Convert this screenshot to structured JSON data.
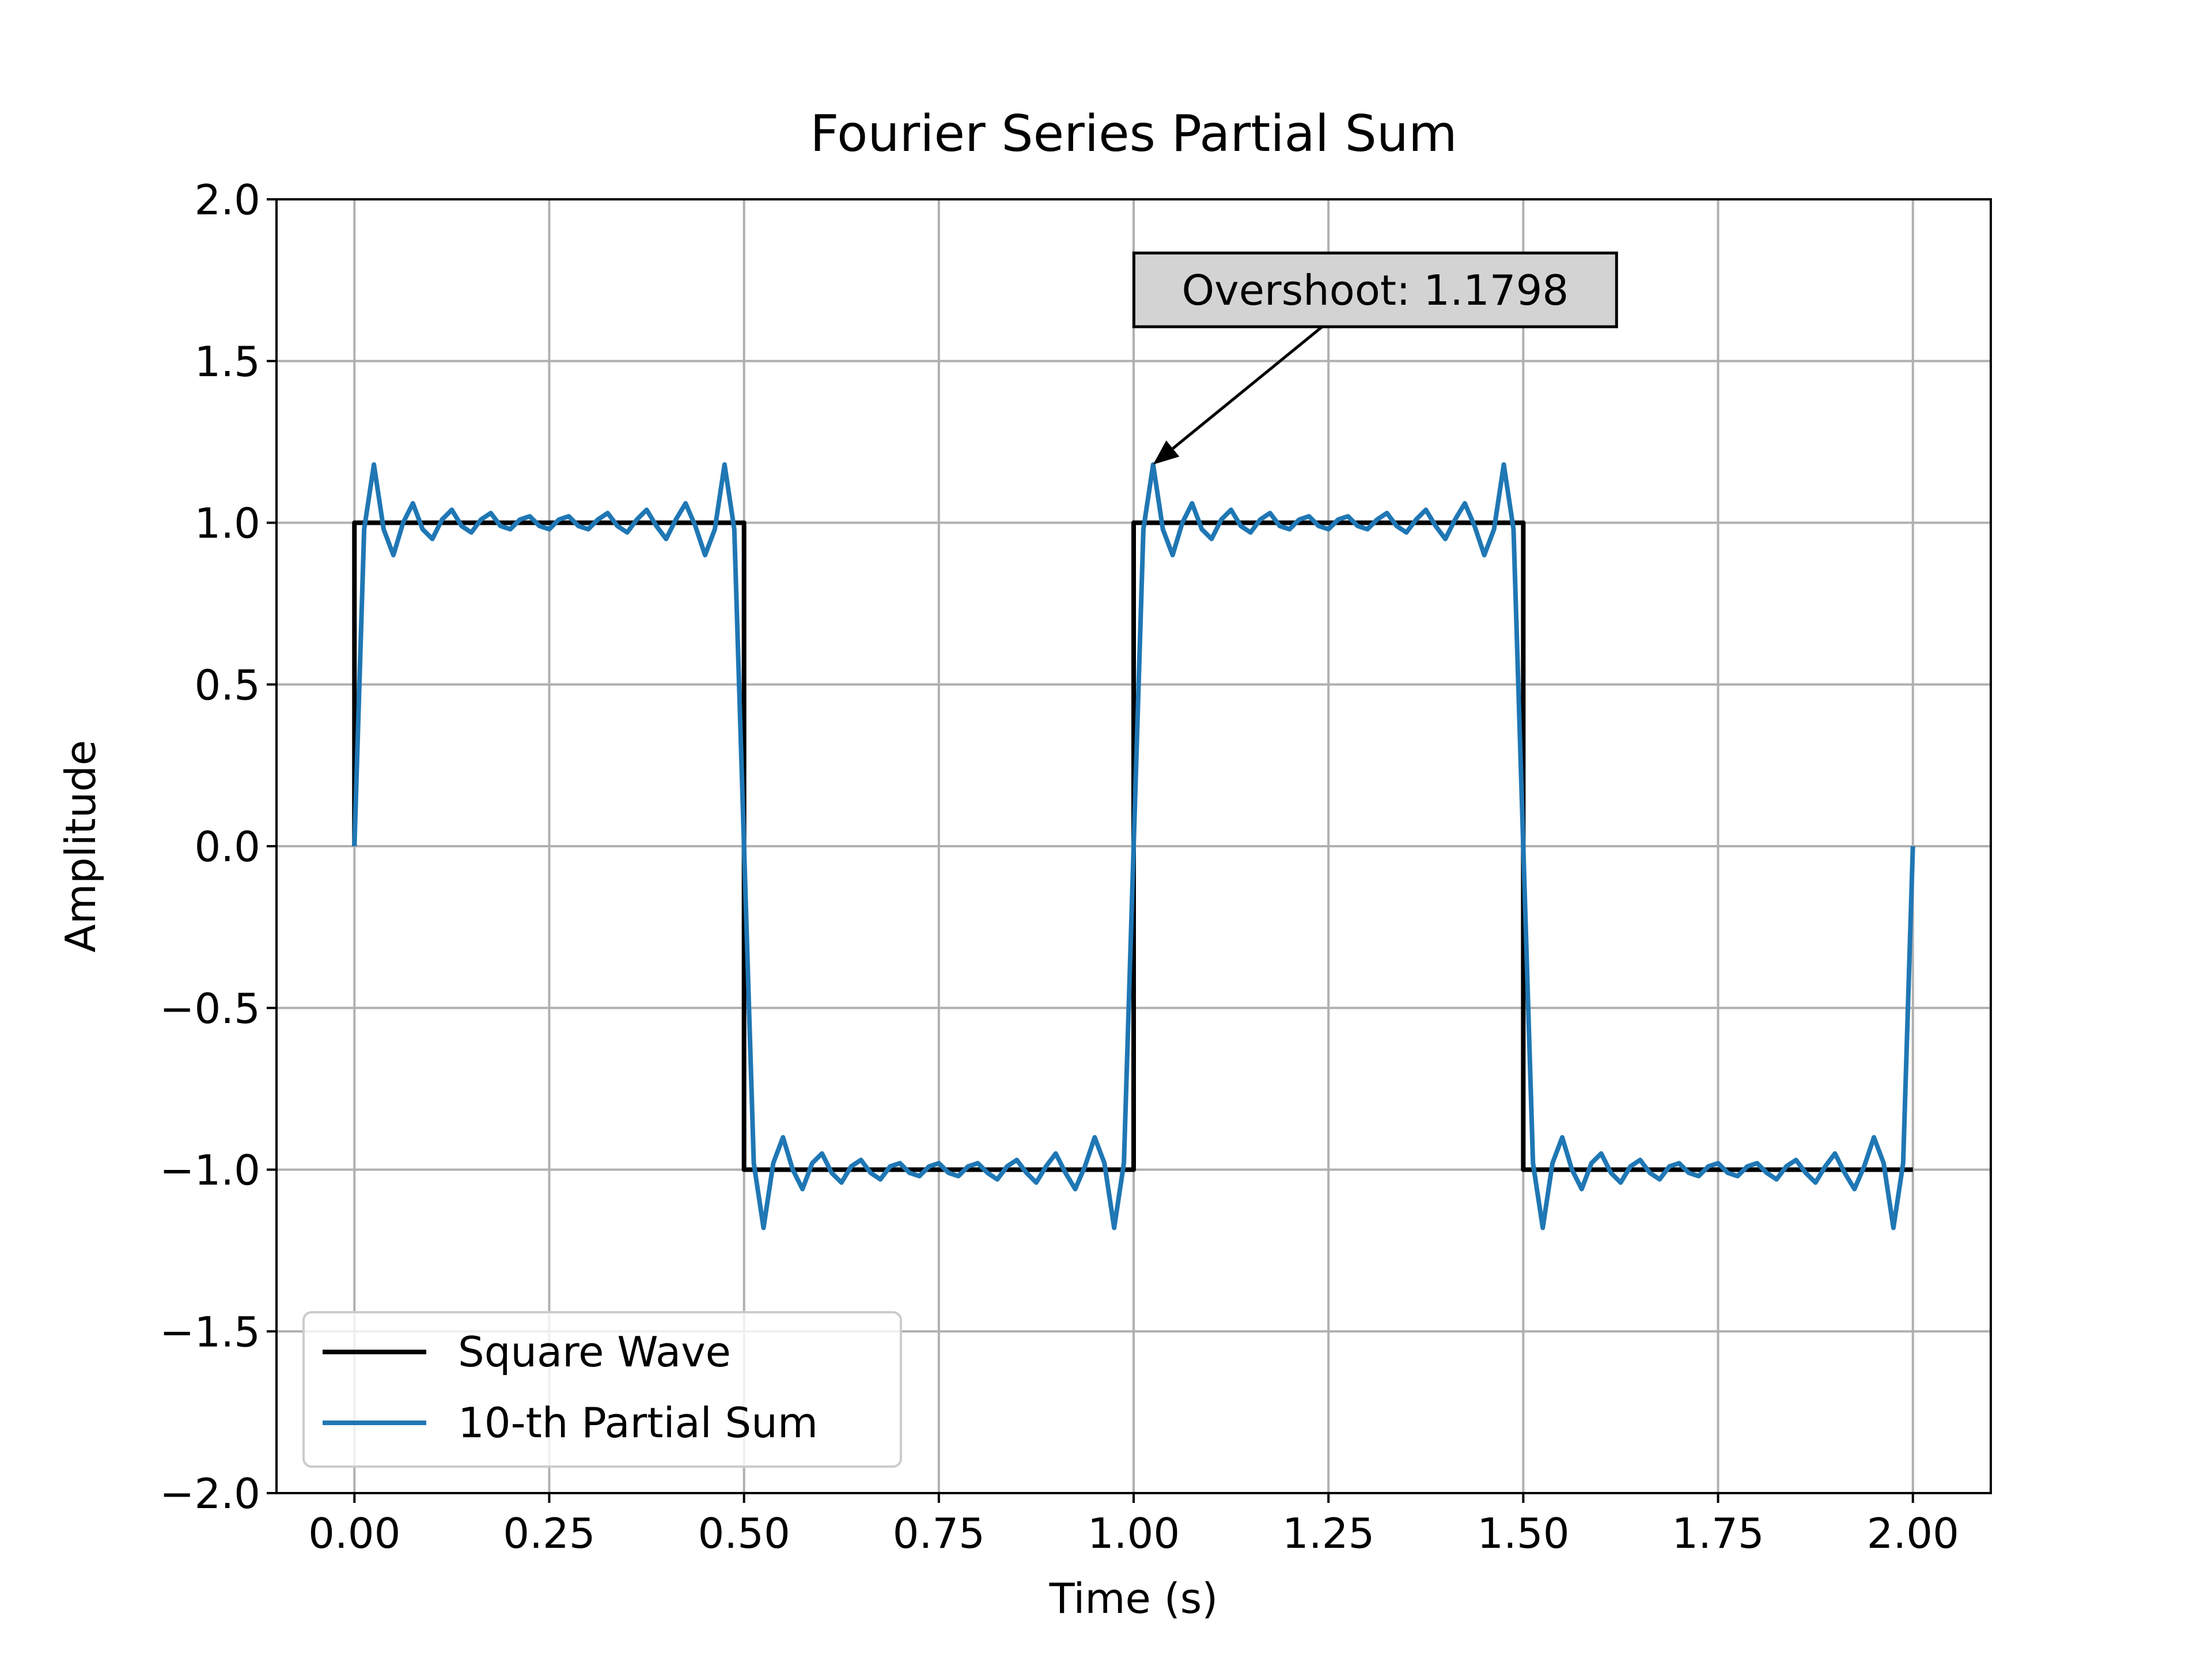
{
  "chart_data": {
    "type": "line",
    "title": "Fourier Series Partial Sum",
    "xlabel": "Time (s)",
    "ylabel": "Amplitude",
    "xlim": [
      -0.1,
      2.1
    ],
    "ylim": [
      -2.0,
      2.0
    ],
    "x_ticks": [
      "0.00",
      "0.25",
      "0.50",
      "0.75",
      "1.00",
      "1.25",
      "1.50",
      "1.75",
      "2.00"
    ],
    "y_ticks": [
      "−2.0",
      "−1.5",
      "−1.0",
      "−0.5",
      "0.0",
      "0.5",
      "1.0",
      "1.5",
      "2.0"
    ],
    "grid": true,
    "legend_position": "lower-left",
    "series": [
      {
        "name": "Square Wave",
        "color": "#000000",
        "x": [
          0,
          0,
          0.5,
          0.5,
          1.0,
          1.0,
          1.5,
          1.5,
          2.0
        ],
        "y": [
          0,
          1,
          1,
          -1,
          -1,
          1,
          1,
          -1,
          -1
        ]
      },
      {
        "name": "10-th Partial Sum",
        "color": "#1f77b4",
        "x": [
          0,
          0.0125,
          0.025,
          0.0375,
          0.05,
          0.0625,
          0.075,
          0.0875,
          0.1,
          0.1125,
          0.125,
          0.1375,
          0.15,
          0.1625,
          0.175,
          0.1875,
          0.2,
          0.2125,
          0.225,
          0.2375,
          0.25,
          0.2625,
          0.275,
          0.2875,
          0.3,
          0.3125,
          0.325,
          0.3375,
          0.35,
          0.3625,
          0.375,
          0.3875,
          0.4,
          0.4125,
          0.425,
          0.4375,
          0.45,
          0.4625,
          0.475,
          0.4875,
          0.5,
          0.5125,
          0.525,
          0.5375,
          0.55,
          0.5625,
          0.575,
          0.5875,
          0.6,
          0.6125,
          0.625,
          0.6375,
          0.65,
          0.6625,
          0.675,
          0.6875,
          0.7,
          0.7125,
          0.725,
          0.7375,
          0.75,
          0.7625,
          0.775,
          0.7875,
          0.8,
          0.8125,
          0.825,
          0.8375,
          0.85,
          0.8625,
          0.875,
          0.8875,
          0.9,
          0.9125,
          0.925,
          0.9375,
          0.95,
          0.9625,
          0.975,
          0.9875,
          1.0,
          1.0125,
          1.025,
          1.0375,
          1.05,
          1.0625,
          1.075,
          1.0875,
          1.1,
          1.1125,
          1.125,
          1.1375,
          1.15,
          1.1625,
          1.175,
          1.1875,
          1.2,
          1.2125,
          1.225,
          1.2375,
          1.25,
          1.2625,
          1.275,
          1.2875,
          1.3,
          1.3125,
          1.325,
          1.3375,
          1.35,
          1.3625,
          1.375,
          1.3875,
          1.4,
          1.4125,
          1.425,
          1.4375,
          1.45,
          1.4625,
          1.475,
          1.4875,
          1.5,
          1.5125,
          1.525,
          1.5375,
          1.55,
          1.5625,
          1.575,
          1.5875,
          1.6,
          1.6125,
          1.625,
          1.6375,
          1.65,
          1.6625,
          1.675,
          1.6875,
          1.7,
          1.7125,
          1.725,
          1.7375,
          1.75,
          1.7625,
          1.775,
          1.7875,
          1.8,
          1.8125,
          1.825,
          1.8375,
          1.85,
          1.8625,
          1.875,
          1.8875,
          1.9,
          1.9125,
          1.925,
          1.9375,
          1.95,
          1.9625,
          1.975,
          1.9875,
          2.0
        ],
        "y": [
          0.0,
          0.98,
          1.18,
          0.98,
          0.9,
          1.0,
          1.06,
          0.98,
          0.95,
          1.01,
          1.04,
          0.99,
          0.97,
          1.01,
          1.03,
          0.99,
          0.98,
          1.01,
          1.02,
          0.99,
          0.98,
          1.01,
          1.02,
          0.99,
          0.98,
          1.01,
          1.03,
          0.99,
          0.97,
          1.01,
          1.04,
          0.99,
          0.95,
          1.01,
          1.06,
          0.99,
          0.9,
          0.98,
          1.18,
          0.98,
          0.0,
          -0.98,
          -1.18,
          -0.98,
          -0.9,
          -1.0,
          -1.06,
          -0.98,
          -0.95,
          -1.01,
          -1.04,
          -0.99,
          -0.97,
          -1.01,
          -1.03,
          -0.99,
          -0.98,
          -1.01,
          -1.02,
          -0.99,
          -0.98,
          -1.01,
          -1.02,
          -0.99,
          -0.98,
          -1.01,
          -1.03,
          -0.99,
          -0.97,
          -1.01,
          -1.04,
          -0.99,
          -0.95,
          -1.01,
          -1.06,
          -0.99,
          -0.9,
          -0.98,
          -1.18,
          -0.98,
          0.0,
          0.98,
          1.18,
          0.98,
          0.9,
          1.0,
          1.06,
          0.98,
          0.95,
          1.01,
          1.04,
          0.99,
          0.97,
          1.01,
          1.03,
          0.99,
          0.98,
          1.01,
          1.02,
          0.99,
          0.98,
          1.01,
          1.02,
          0.99,
          0.98,
          1.01,
          1.03,
          0.99,
          0.97,
          1.01,
          1.04,
          0.99,
          0.95,
          1.01,
          1.06,
          0.99,
          0.9,
          0.98,
          1.18,
          0.98,
          0.0,
          -0.98,
          -1.18,
          -0.98,
          -0.9,
          -1.0,
          -1.06,
          -0.98,
          -0.95,
          -1.01,
          -1.04,
          -0.99,
          -0.97,
          -1.01,
          -1.03,
          -0.99,
          -0.98,
          -1.01,
          -1.02,
          -0.99,
          -0.98,
          -1.01,
          -1.02,
          -0.99,
          -0.98,
          -1.01,
          -1.03,
          -0.99,
          -0.97,
          -1.01,
          -1.04,
          -0.99,
          -0.95,
          -1.01,
          -1.06,
          -0.99,
          -0.9,
          -0.98,
          -1.18,
          -0.98,
          0.0
        ]
      }
    ],
    "annotation": {
      "text": "Overshoot: 1.1798",
      "point": [
        1.025,
        1.18
      ],
      "text_anchor": [
        1.31,
        1.72
      ]
    }
  }
}
